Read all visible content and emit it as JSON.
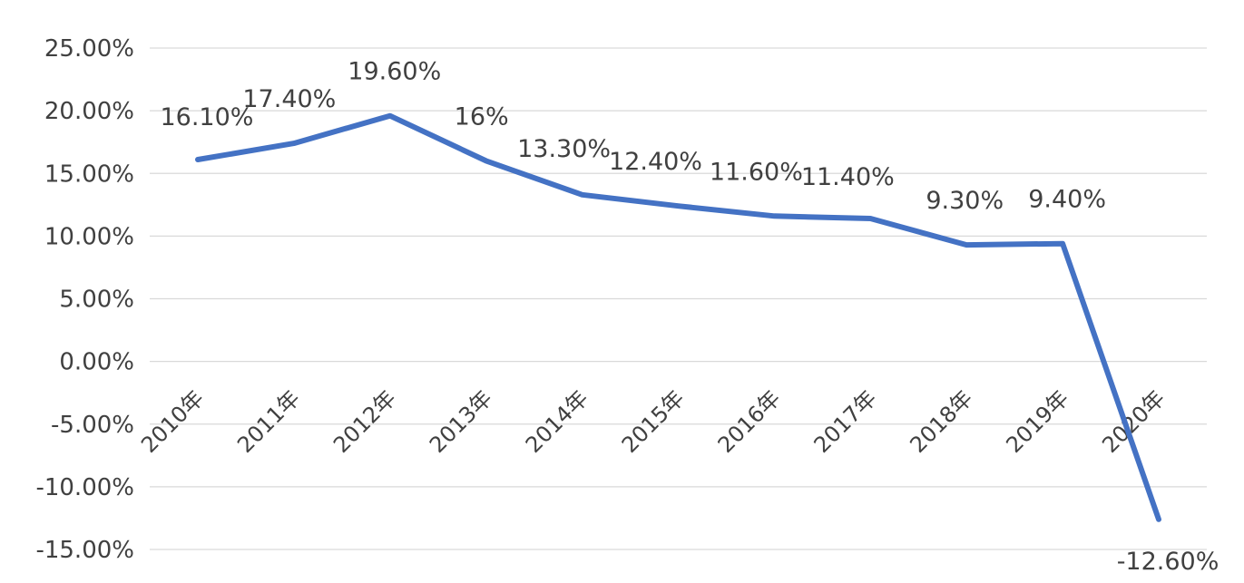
{
  "chart_data": {
    "type": "line",
    "title": "",
    "xlabel": "",
    "ylabel": "",
    "categories": [
      "2010年",
      "2011年",
      "2012年",
      "2013年",
      "2014年",
      "2015年",
      "2016年",
      "2017年",
      "2018年",
      "2019年",
      "2020年"
    ],
    "series": [
      {
        "values": [
          16.1,
          17.4,
          19.6,
          16.0,
          13.3,
          12.4,
          11.6,
          11.4,
          9.3,
          9.4,
          -12.6
        ],
        "data_labels": [
          "16.10%",
          "17.40%",
          "19.60%",
          "16%",
          "13.30%",
          "12.40%",
          "11.60%",
          "11.40%",
          "9.30%",
          "9.40%",
          "-12.60%"
        ]
      }
    ],
    "ylim": [
      -15,
      25
    ],
    "ytick_labels": [
      "25.00%",
      "20.00%",
      "15.00%",
      "10.00%",
      "5.00%",
      "0.00%",
      "-5.00%",
      "-10.00%",
      "-15.00%"
    ],
    "ytick_values": [
      25,
      20,
      15,
      10,
      5,
      0,
      -5,
      -10,
      -15
    ],
    "grid": true,
    "legend": "none",
    "colors": {
      "line": "#4472C4",
      "grid": "#D9D9D9",
      "text": "#404040"
    }
  }
}
